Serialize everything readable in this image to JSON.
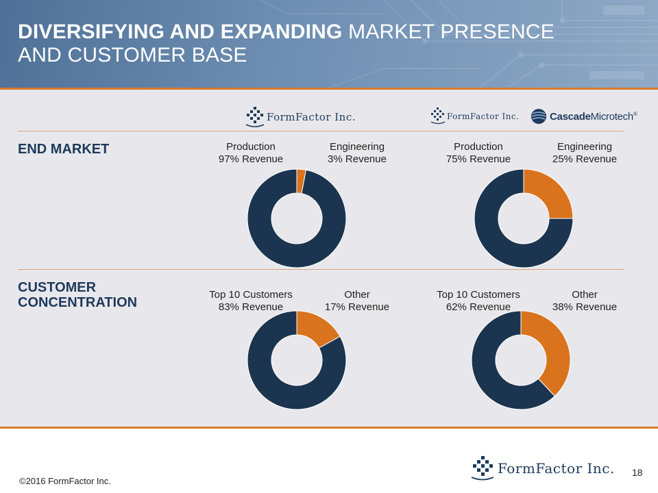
{
  "header": {
    "title_bold": "DIVERSIFYING AND EXPANDING",
    "title_rest": " MARKET PRESENCE",
    "title_line2": "AND CUSTOMER BASE"
  },
  "logos": {
    "formfactor": "FormFactor Inc.",
    "cascade_bold": "Cascade",
    "cascade_rest": "Microtech",
    "cascade_reg": "®"
  },
  "rows": {
    "end_market": "END MARKET",
    "customer_line1": "CUSTOMER",
    "customer_line2": "CONCENTRATION"
  },
  "colors": {
    "navy": "#1b3550",
    "orange": "#d9731d",
    "panel": "#e8e8ec",
    "accent": "#d97b2b"
  },
  "chart_data": [
    {
      "type": "pie",
      "categories": [
        "Production",
        "Engineering"
      ],
      "values": [
        97,
        3
      ],
      "labels": [
        {
          "name": "Production",
          "value": "97% Revenue"
        },
        {
          "name": "Engineering",
          "value": "3% Revenue"
        }
      ]
    },
    {
      "type": "pie",
      "categories": [
        "Production",
        "Engineering"
      ],
      "values": [
        75,
        25
      ],
      "labels": [
        {
          "name": "Production",
          "value": "75% Revenue"
        },
        {
          "name": "Engineering",
          "value": "25% Revenue"
        }
      ]
    },
    {
      "type": "pie",
      "categories": [
        "Top 10 Customers",
        "Other"
      ],
      "values": [
        83,
        17
      ],
      "labels": [
        {
          "name": "Top 10 Customers",
          "value": "83% Revenue"
        },
        {
          "name": "Other",
          "value": "17% Revenue"
        }
      ]
    },
    {
      "type": "pie",
      "categories": [
        "Top 10 Customers",
        "Other"
      ],
      "values": [
        62,
        38
      ],
      "labels": [
        {
          "name": "Top 10 Customers",
          "value": "62% Revenue"
        },
        {
          "name": "Other",
          "value": "38% Revenue"
        }
      ]
    }
  ],
  "footer": {
    "copyright": "©2016 FormFactor Inc.",
    "page_number": "18"
  }
}
